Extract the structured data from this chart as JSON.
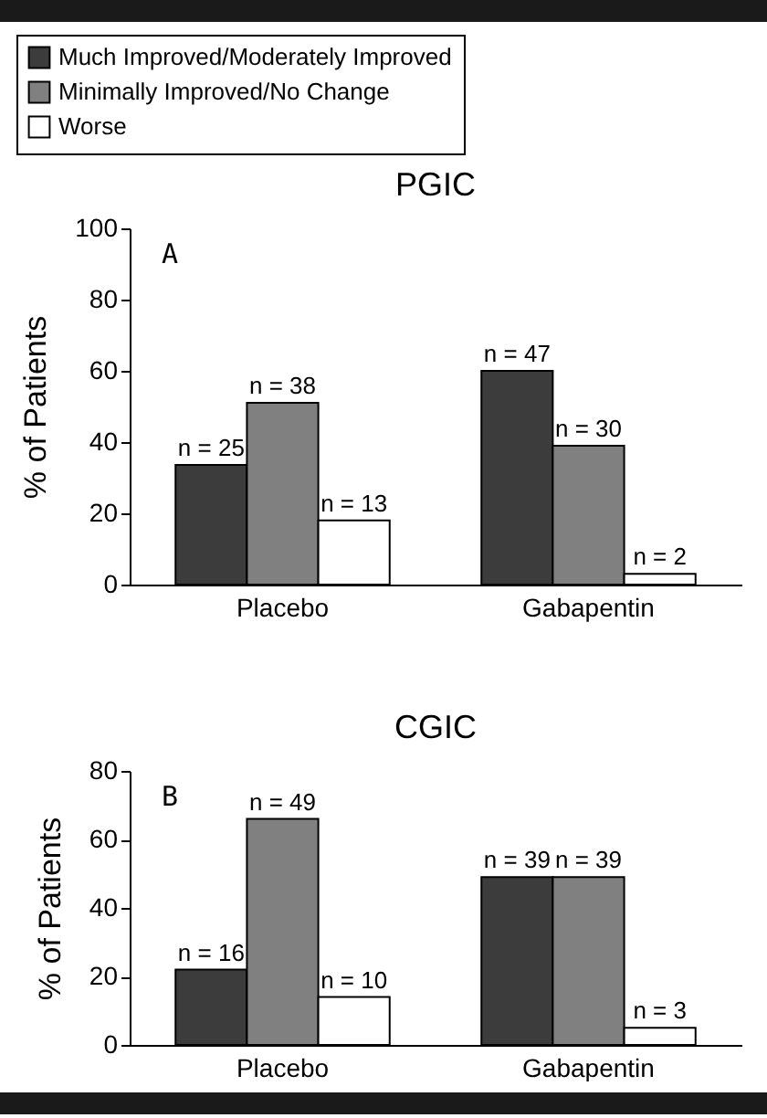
{
  "chart_data": [
    {
      "type": "bar",
      "title": "PGIC",
      "ylabel": "% of Patients",
      "categories": [
        "Placebo",
        "Gabapentin"
      ],
      "ylim": [
        0,
        100
      ],
      "yticks": [
        0,
        20,
        40,
        60,
        80,
        100
      ],
      "legend": "top left",
      "annotations": [
        "A",
        "n = 25",
        "n = 38",
        "n = 13",
        "n = 47",
        "n = 30",
        "n = 2"
      ],
      "series": [
        {
          "name": "Much Improved/Moderately Improved",
          "color": "#3c3c3c",
          "values": [
            33.6,
            60
          ]
        },
        {
          "name": "Minimally Improved/No Change",
          "color": "#808080",
          "values": [
            51,
            39
          ]
        },
        {
          "name": "Worse",
          "color": "#ffffff",
          "values": [
            18,
            3
          ]
        }
      ]
    },
    {
      "type": "bar",
      "title": "CGIC",
      "ylabel": "% of Patients",
      "categories": [
        "Placebo",
        "Gabapentin"
      ],
      "ylim": [
        0,
        80
      ],
      "yticks": [
        0,
        20,
        40,
        60,
        80
      ],
      "annotations": [
        "B",
        "n = 16",
        "n = 49",
        "n = 10",
        "n = 39",
        "n = 39",
        "n = 3"
      ],
      "series": [
        {
          "name": "Much Improved/Moderately Improved",
          "color": "#3c3c3c",
          "values": [
            22,
            49
          ]
        },
        {
          "name": "Minimally Improved/No Change",
          "color": "#808080",
          "values": [
            66,
            49
          ]
        },
        {
          "name": "Worse",
          "color": "#ffffff",
          "values": [
            14,
            5
          ]
        }
      ]
    }
  ]
}
